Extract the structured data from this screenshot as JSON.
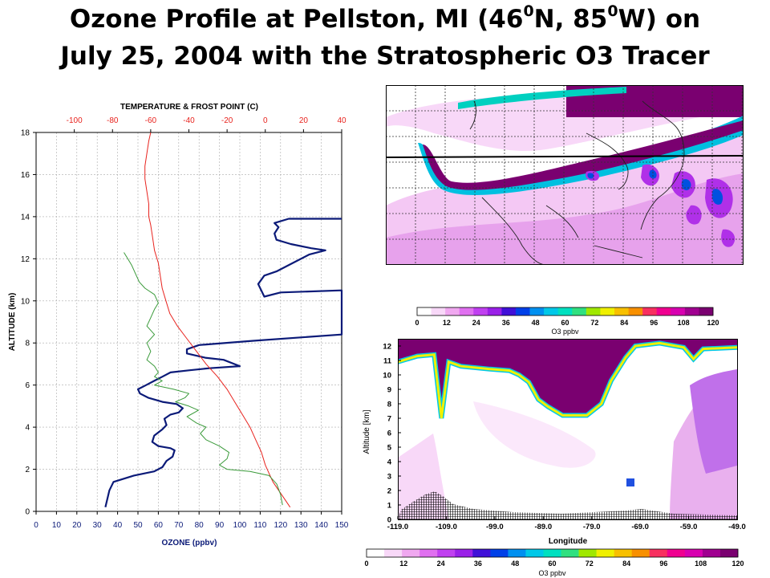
{
  "title": {
    "line1_a": "Ozone Profile at  Pellston, MI (46",
    "deg1": "0",
    "line1_b": "N, 85",
    "deg2": "0",
    "line1_c": "W) on",
    "line2": "July 25, 2004 with the Stratospheric O3 Tracer"
  },
  "colors": {
    "ozone": "#0b1a78",
    "temperature": "#e8231e",
    "frost_point": "#3a9a3a",
    "high_o3": "#7a0070",
    "purple": "#cc00ff"
  },
  "colorbar": {
    "ticks": [
      "0",
      "12",
      "24",
      "36",
      "48",
      "60",
      "72",
      "84",
      "96",
      "108",
      "120"
    ],
    "label": "O3 ppbv",
    "colors": [
      "#ffffff",
      "#f8d8f8",
      "#f0a8f0",
      "#e070f0",
      "#c040f0",
      "#9a20e8",
      "#4010d8",
      "#0040e8",
      "#0090f0",
      "#00c8e8",
      "#00e0c0",
      "#30e080",
      "#a0e800",
      "#f0f000",
      "#f8c000",
      "#f89000",
      "#f83060",
      "#f00090",
      "#d800b0",
      "#a00090",
      "#7a0070"
    ]
  },
  "map": {},
  "chart_data": [
    {
      "type": "line",
      "title": "TEMPERATURE & FROST POINT (C)",
      "xlabel": "OZONE (ppbv)",
      "ylabel": "ALTITUDE (km)",
      "xlim": [
        0,
        150
      ],
      "xticks": [
        "0",
        "10",
        "20",
        "30",
        "40",
        "50",
        "60",
        "70",
        "80",
        "90",
        "100",
        "110",
        "120",
        "130",
        "140",
        "150"
      ],
      "x2lim": [
        -120,
        40
      ],
      "x2ticks": [
        "-100",
        "-80",
        "-60",
        "-40",
        "-20",
        "0",
        "20",
        "40"
      ],
      "ylim": [
        0,
        18
      ],
      "yticks": [
        "0",
        "2",
        "4",
        "6",
        "8",
        "10",
        "12",
        "14",
        "16",
        "18"
      ],
      "grid": true,
      "series": [
        {
          "name": "",
          "axis": "ozone",
          "points": [
            [
              34,
              0.2
            ],
            [
              35,
              0.6
            ],
            [
              36,
              1.0
            ],
            [
              38,
              1.4
            ],
            [
              48,
              1.7
            ],
            [
              58,
              1.9
            ],
            [
              62,
              2.1
            ],
            [
              64,
              2.4
            ],
            [
              67,
              2.6
            ],
            [
              68,
              2.9
            ],
            [
              66,
              3.0
            ],
            [
              60,
              3.1
            ],
            [
              57,
              3.3
            ],
            [
              58,
              3.6
            ],
            [
              62,
              3.9
            ],
            [
              64,
              4.1
            ],
            [
              63,
              4.4
            ],
            [
              66,
              4.6
            ],
            [
              70,
              4.7
            ],
            [
              72,
              4.9
            ],
            [
              69,
              5.1
            ],
            [
              62,
              5.2
            ],
            [
              55,
              5.4
            ],
            [
              51,
              5.6
            ],
            [
              50,
              5.8
            ],
            [
              54,
              6.0
            ],
            [
              58,
              6.2
            ],
            [
              62,
              6.4
            ],
            [
              66,
              6.6
            ],
            [
              75,
              6.7
            ],
            [
              85,
              6.8
            ],
            [
              100,
              6.9
            ],
            [
              92,
              7.2
            ],
            [
              83,
              7.3
            ],
            [
              74,
              7.5
            ],
            [
              74,
              7.7
            ],
            [
              80,
              7.9
            ],
            [
              106,
              8.1
            ],
            [
              150,
              8.4
            ],
            [
              150,
              10.5
            ],
            [
              120,
              10.4
            ],
            [
              112,
              10.2
            ],
            [
              109,
              10.8
            ],
            [
              112,
              11.2
            ],
            [
              118,
              11.4
            ],
            [
              126,
              11.8
            ],
            [
              134,
              12.2
            ],
            [
              142,
              12.4
            ],
            [
              135,
              12.5
            ],
            [
              125,
              12.7
            ],
            [
              118,
              12.9
            ],
            [
              117,
              13.2
            ],
            [
              119,
              13.5
            ],
            [
              117,
              13.7
            ],
            [
              124,
              13.9
            ],
            [
              150,
              13.9
            ]
          ]
        },
        {
          "name": "",
          "axis": "temperature",
          "points": [
            [
              13,
              0.2
            ],
            [
              10,
              0.6
            ],
            [
              7,
              1.0
            ],
            [
              4,
              1.4
            ],
            [
              2,
              1.8
            ],
            [
              0,
              2.2
            ],
            [
              -2,
              2.8
            ],
            [
              -5,
              3.4
            ],
            [
              -8,
              4.0
            ],
            [
              -12,
              4.6
            ],
            [
              -16,
              5.2
            ],
            [
              -20,
              5.8
            ],
            [
              -25,
              6.4
            ],
            [
              -31,
              7.0
            ],
            [
              -36,
              7.6
            ],
            [
              -41,
              8.2
            ],
            [
              -46,
              8.8
            ],
            [
              -50,
              9.4
            ],
            [
              -52,
              10.0
            ],
            [
              -54,
              10.6
            ],
            [
              -55,
              11.2
            ],
            [
              -56,
              11.8
            ],
            [
              -58,
              12.4
            ],
            [
              -59,
              13.0
            ],
            [
              -60,
              13.6
            ],
            [
              -61,
              14.0
            ],
            [
              -61,
              14.6
            ],
            [
              -62,
              15.2
            ],
            [
              -63,
              15.8
            ],
            [
              -63,
              16.4
            ],
            [
              -62,
              17.0
            ],
            [
              -61,
              17.6
            ],
            [
              -60,
              18.0
            ]
          ]
        },
        {
          "name": "",
          "axis": "temperature",
          "points": [
            [
              9,
              0.3
            ],
            [
              8,
              0.8
            ],
            [
              6,
              1.3
            ],
            [
              2,
              1.7
            ],
            [
              -8,
              1.9
            ],
            [
              -20,
              2.0
            ],
            [
              -24,
              2.2
            ],
            [
              -20,
              2.5
            ],
            [
              -19,
              2.8
            ],
            [
              -24,
              3.1
            ],
            [
              -31,
              3.4
            ],
            [
              -34,
              3.7
            ],
            [
              -31,
              4.0
            ],
            [
              -36,
              4.2
            ],
            [
              -41,
              4.5
            ],
            [
              -35,
              4.8
            ],
            [
              -40,
              5.0
            ],
            [
              -47,
              5.2
            ],
            [
              -42,
              5.4
            ],
            [
              -40,
              5.6
            ],
            [
              -48,
              5.8
            ],
            [
              -58,
              6.0
            ],
            [
              -54,
              6.2
            ],
            [
              -58,
              6.4
            ],
            [
              -56,
              6.6
            ],
            [
              -58,
              6.9
            ],
            [
              -62,
              7.2
            ],
            [
              -60,
              7.6
            ],
            [
              -62,
              8.0
            ],
            [
              -58,
              8.4
            ],
            [
              -62,
              8.8
            ],
            [
              -60,
              9.2
            ],
            [
              -58,
              9.6
            ],
            [
              -56,
              9.9
            ],
            [
              -58,
              10.3
            ],
            [
              -63,
              10.6
            ],
            [
              -66,
              10.9
            ],
            [
              -68,
              11.3
            ],
            [
              -70,
              11.7
            ],
            [
              -72,
              12.0
            ],
            [
              -74,
              12.3
            ]
          ]
        }
      ]
    },
    {
      "type": "heatmap",
      "title": "",
      "xlabel": "Longitude",
      "ylabel": "Altitude [km]",
      "xlim": [
        -119,
        -49
      ],
      "xticks": [
        "-119.0",
        "-109.0",
        "-99.0",
        "-89.0",
        "-79.0",
        "-69.0",
        "-59.0",
        "-49.0"
      ],
      "ylim": [
        0,
        12.5
      ],
      "yticks": [
        "0",
        "1",
        "2",
        "3",
        "4",
        "5",
        "6",
        "7",
        "8",
        "9",
        "10",
        "11",
        "12"
      ],
      "tropopause_base_km": [
        [
          -119,
          10.9
        ],
        [
          -115,
          11.3
        ],
        [
          -111.5,
          11.4
        ],
        [
          -110,
          7.0
        ],
        [
          -108.5,
          10.9
        ],
        [
          -106,
          10.6
        ],
        [
          -100,
          10.4
        ],
        [
          -96,
          10.3
        ],
        [
          -94,
          10.0
        ],
        [
          -92,
          9.5
        ],
        [
          -90,
          8.3
        ],
        [
          -88,
          7.8
        ],
        [
          -85,
          7.2
        ],
        [
          -80,
          7.2
        ],
        [
          -77,
          8.0
        ],
        [
          -75,
          9.6
        ],
        [
          -72,
          11.2
        ],
        [
          -70,
          12.0
        ],
        [
          -65,
          12.2
        ],
        [
          -60,
          11.9
        ],
        [
          -58,
          11.1
        ],
        [
          -56,
          11.8
        ],
        [
          -49,
          11.9
        ]
      ]
    }
  ]
}
